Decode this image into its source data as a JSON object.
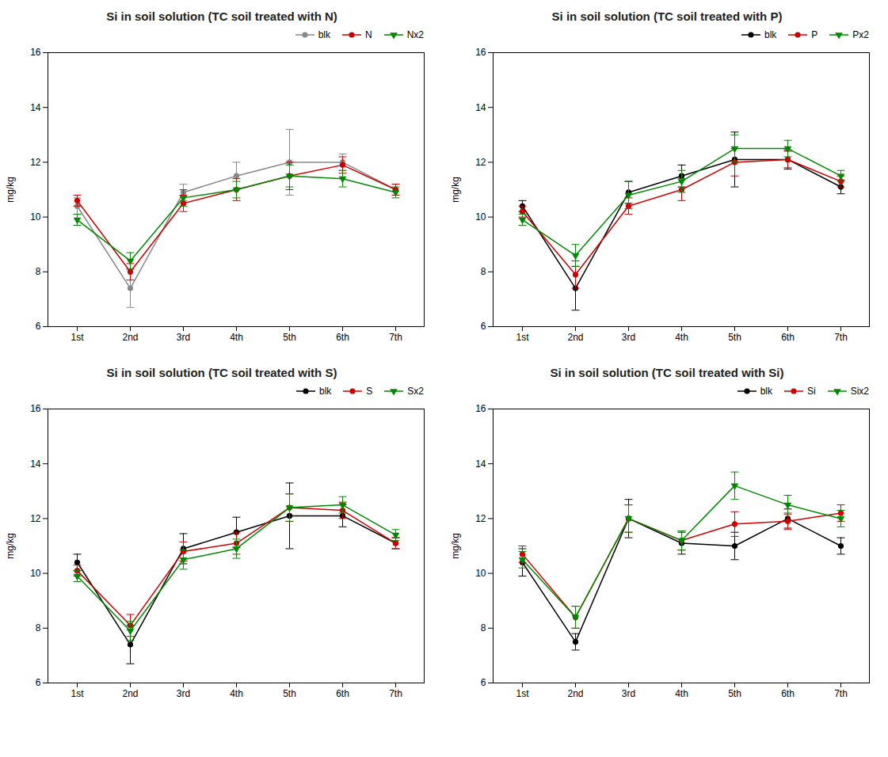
{
  "chart_data": [
    {
      "type": "line",
      "title": "Si in soil solution (TC soil treated with N)",
      "ylabel": "mg/kg",
      "categories": [
        "1st",
        "2nd",
        "3rd",
        "4th",
        "5th",
        "6th",
        "7th"
      ],
      "ylim": [
        6,
        16
      ],
      "yticks": [
        6,
        8,
        10,
        12,
        14,
        16
      ],
      "legend": "upper right",
      "series": [
        {
          "name": "blk",
          "color": "#888888",
          "marker": "circle",
          "values": [
            10.4,
            7.4,
            10.9,
            11.5,
            12.0,
            12.0,
            11.0
          ],
          "yerr": [
            0.3,
            0.7,
            0.3,
            0.5,
            1.2,
            0.3,
            0.2
          ]
        },
        {
          "name": "N",
          "color": "#cc0000",
          "marker": "circle",
          "values": [
            10.6,
            8.0,
            10.5,
            11.0,
            11.5,
            11.9,
            11.0
          ],
          "yerr": [
            0.2,
            0.3,
            0.3,
            0.4,
            0.5,
            0.3,
            0.2
          ]
        },
        {
          "name": "Nx2",
          "color": "#008800",
          "marker": "triangle-down",
          "values": [
            9.9,
            8.4,
            10.7,
            11.0,
            11.5,
            11.4,
            10.9
          ],
          "yerr": [
            0.2,
            0.3,
            0.3,
            0.3,
            0.4,
            0.3,
            0.2
          ]
        }
      ]
    },
    {
      "type": "line",
      "title": "Si in soil solution (TC soil treated with P)",
      "ylabel": "mg/kg",
      "categories": [
        "1st",
        "2nd",
        "3rd",
        "4th",
        "5th",
        "6th",
        "7th"
      ],
      "ylim": [
        6,
        16
      ],
      "yticks": [
        6,
        8,
        10,
        12,
        14,
        16
      ],
      "legend": "upper right",
      "series": [
        {
          "name": "blk",
          "color": "#000000",
          "marker": "circle",
          "values": [
            10.4,
            7.4,
            10.9,
            11.5,
            12.1,
            12.1,
            11.1
          ],
          "yerr": [
            0.2,
            0.8,
            0.4,
            0.4,
            1.0,
            0.35,
            0.25
          ]
        },
        {
          "name": "P",
          "color": "#cc0000",
          "marker": "circle",
          "values": [
            10.2,
            7.9,
            10.4,
            11.0,
            12.0,
            12.1,
            11.3
          ],
          "yerr": [
            0.2,
            0.5,
            0.3,
            0.4,
            0.5,
            0.3,
            0.2
          ]
        },
        {
          "name": "Px2",
          "color": "#008800",
          "marker": "triangle-down",
          "values": [
            9.9,
            8.6,
            10.8,
            11.3,
            12.5,
            12.5,
            11.5
          ],
          "yerr": [
            0.2,
            0.4,
            0.5,
            0.4,
            0.5,
            0.3,
            0.2
          ]
        }
      ]
    },
    {
      "type": "line",
      "title": "Si in soil solution (TC soil treated with S)",
      "ylabel": "mg/kg",
      "categories": [
        "1st",
        "2nd",
        "3rd",
        "4th",
        "5th",
        "6th",
        "7th"
      ],
      "ylim": [
        6,
        16
      ],
      "yticks": [
        6,
        8,
        10,
        12,
        14,
        16
      ],
      "legend": "upper right",
      "series": [
        {
          "name": "blk",
          "color": "#000000",
          "marker": "circle",
          "values": [
            10.4,
            7.4,
            10.9,
            11.5,
            12.1,
            12.1,
            11.1
          ],
          "yerr": [
            0.3,
            0.7,
            0.55,
            0.55,
            1.2,
            0.4,
            0.2
          ]
        },
        {
          "name": "S",
          "color": "#cc0000",
          "marker": "circle",
          "values": [
            10.1,
            8.1,
            10.8,
            11.1,
            12.4,
            12.3,
            11.1
          ],
          "yerr": [
            0.2,
            0.4,
            0.35,
            0.4,
            0.5,
            0.3,
            0.2
          ]
        },
        {
          "name": "Sx2",
          "color": "#008800",
          "marker": "triangle-down",
          "values": [
            9.9,
            7.9,
            10.5,
            10.9,
            12.4,
            12.5,
            11.4
          ],
          "yerr": [
            0.2,
            0.35,
            0.35,
            0.35,
            0.5,
            0.3,
            0.2
          ]
        }
      ]
    },
    {
      "type": "line",
      "title": "Si in soil solution (TC soil treated with Si)",
      "ylabel": "mg/kg",
      "categories": [
        "1st",
        "2nd",
        "3rd",
        "4th",
        "5th",
        "6th",
        "7th"
      ],
      "ylim": [
        6,
        16
      ],
      "yticks": [
        6,
        8,
        10,
        12,
        14,
        16
      ],
      "legend": "upper right",
      "series": [
        {
          "name": "blk",
          "color": "#000000",
          "marker": "circle",
          "values": [
            10.4,
            7.5,
            12.0,
            11.1,
            11.0,
            12.0,
            11.0
          ],
          "yerr": [
            0.5,
            0.3,
            0.7,
            0.4,
            0.5,
            0.35,
            0.3
          ]
        },
        {
          "name": "Si",
          "color": "#cc0000",
          "marker": "circle",
          "values": [
            10.7,
            8.4,
            12.0,
            11.2,
            11.8,
            11.9,
            12.2
          ],
          "yerr": [
            0.3,
            0.4,
            0.5,
            0.35,
            0.45,
            0.3,
            0.3
          ]
        },
        {
          "name": "Six2",
          "color": "#008800",
          "marker": "triangle-down",
          "values": [
            10.5,
            8.4,
            12.0,
            11.2,
            13.2,
            12.5,
            12.0
          ],
          "yerr": [
            0.3,
            0.4,
            0.5,
            0.35,
            0.5,
            0.35,
            0.3
          ]
        }
      ]
    }
  ]
}
